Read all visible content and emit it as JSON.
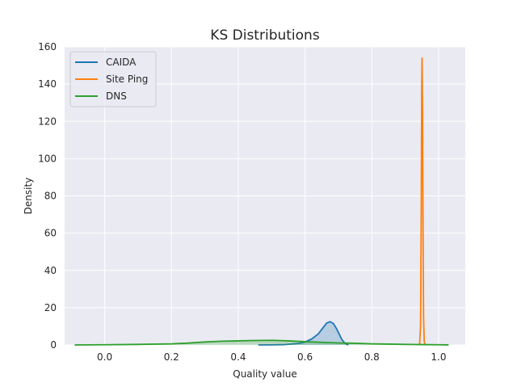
{
  "chart_data": {
    "type": "line",
    "title": "KS Distributions",
    "xlabel": "Quality value",
    "ylabel": "Density",
    "xlim": [
      -0.12,
      1.08
    ],
    "ylim": [
      0,
      160
    ],
    "xticks": [
      0.0,
      0.2,
      0.4,
      0.6,
      0.8,
      1.0
    ],
    "xtick_labels": [
      "0.0",
      "0.2",
      "0.4",
      "0.6",
      "0.8",
      "1.0"
    ],
    "yticks": [
      0,
      20,
      40,
      60,
      80,
      100,
      120,
      140,
      160
    ],
    "ytick_labels": [
      "0",
      "20",
      "40",
      "60",
      "80",
      "100",
      "120",
      "140",
      "160"
    ],
    "grid": true,
    "legend_position": "top-left",
    "colors": {
      "plot_background": "#eaeaf2",
      "grid": "#ffffff",
      "frame": "#ffffff"
    },
    "series": [
      {
        "name": "CAIDA",
        "color": "#1f77b4",
        "fill": true,
        "x": [
          0.46,
          0.5,
          0.54,
          0.58,
          0.6,
          0.62,
          0.64,
          0.655,
          0.665,
          0.675,
          0.685,
          0.695,
          0.71,
          0.72,
          0.73
        ],
        "y": [
          0.0,
          0.05,
          0.2,
          0.8,
          1.6,
          3.2,
          6.0,
          9.5,
          11.8,
          12.5,
          11.5,
          8.5,
          3.0,
          0.8,
          0.0
        ]
      },
      {
        "name": "Site Ping",
        "color": "#ff7f0e",
        "fill": false,
        "x": [
          0.943,
          0.946,
          0.948,
          0.9495,
          0.9505,
          0.952,
          0.9535,
          0.955,
          0.957,
          0.96
        ],
        "y": [
          0.0,
          10,
          70,
          140,
          154,
          125,
          60,
          15,
          2,
          0.0
        ]
      },
      {
        "name": "DNS",
        "color": "#2ca02c",
        "fill": true,
        "x": [
          -0.09,
          0.0,
          0.1,
          0.2,
          0.25,
          0.3,
          0.35,
          0.4,
          0.45,
          0.5,
          0.55,
          0.6,
          0.65,
          0.7,
          0.75,
          0.8,
          0.85,
          0.9,
          0.95,
          1.0,
          1.03
        ],
        "y": [
          0.0,
          0.1,
          0.3,
          0.6,
          1.0,
          1.6,
          2.0,
          2.2,
          2.4,
          2.5,
          2.2,
          1.8,
          1.4,
          1.1,
          0.9,
          0.6,
          0.45,
          0.3,
          0.2,
          0.1,
          0.02
        ]
      }
    ]
  }
}
